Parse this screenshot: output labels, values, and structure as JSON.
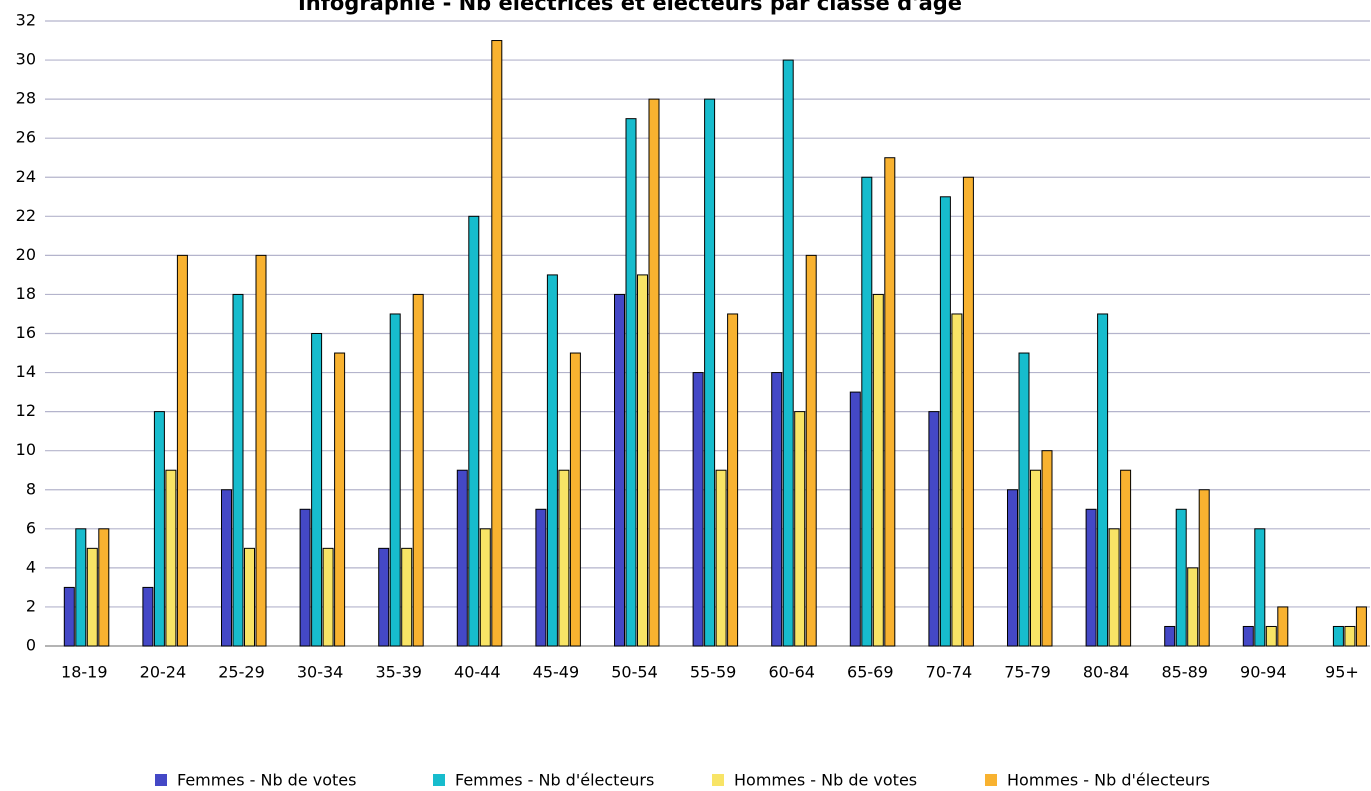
{
  "chart_data": {
    "type": "bar",
    "title": "Infographie - Nb électrices et électeurs par classe d'âge",
    "categories": [
      "18-19",
      "20-24",
      "25-29",
      "30-34",
      "35-39",
      "40-44",
      "45-49",
      "50-54",
      "55-59",
      "60-64",
      "65-69",
      "70-74",
      "75-79",
      "80-84",
      "85-89",
      "90-94",
      "95+"
    ],
    "series": [
      {
        "name": "Femmes - Nb de votes",
        "color": "#4448c6",
        "values": [
          3,
          3,
          8,
          7,
          5,
          9,
          7,
          18,
          14,
          14,
          13,
          12,
          8,
          7,
          1,
          1,
          0
        ]
      },
      {
        "name": "Femmes - Nb d'électeurs",
        "color": "#17bccd",
        "values": [
          6,
          12,
          18,
          16,
          17,
          22,
          19,
          27,
          28,
          30,
          24,
          23,
          15,
          17,
          7,
          6,
          1
        ]
      },
      {
        "name": "Hommes - Nb de votes",
        "color": "#f8e466",
        "values": [
          5,
          9,
          5,
          5,
          5,
          6,
          9,
          19,
          9,
          12,
          18,
          17,
          9,
          6,
          4,
          1,
          1
        ]
      },
      {
        "name": "Hommes - Nb d'électeurs",
        "color": "#f8b230",
        "values": [
          6,
          20,
          20,
          15,
          18,
          31,
          15,
          28,
          17,
          20,
          25,
          24,
          10,
          9,
          8,
          2,
          2
        ]
      }
    ],
    "ylim": [
      0,
      32
    ],
    "yticks": [
      0,
      2,
      4,
      6,
      8,
      10,
      12,
      14,
      16,
      18,
      20,
      22,
      24,
      26,
      28,
      30,
      32
    ],
    "grid": true
  }
}
